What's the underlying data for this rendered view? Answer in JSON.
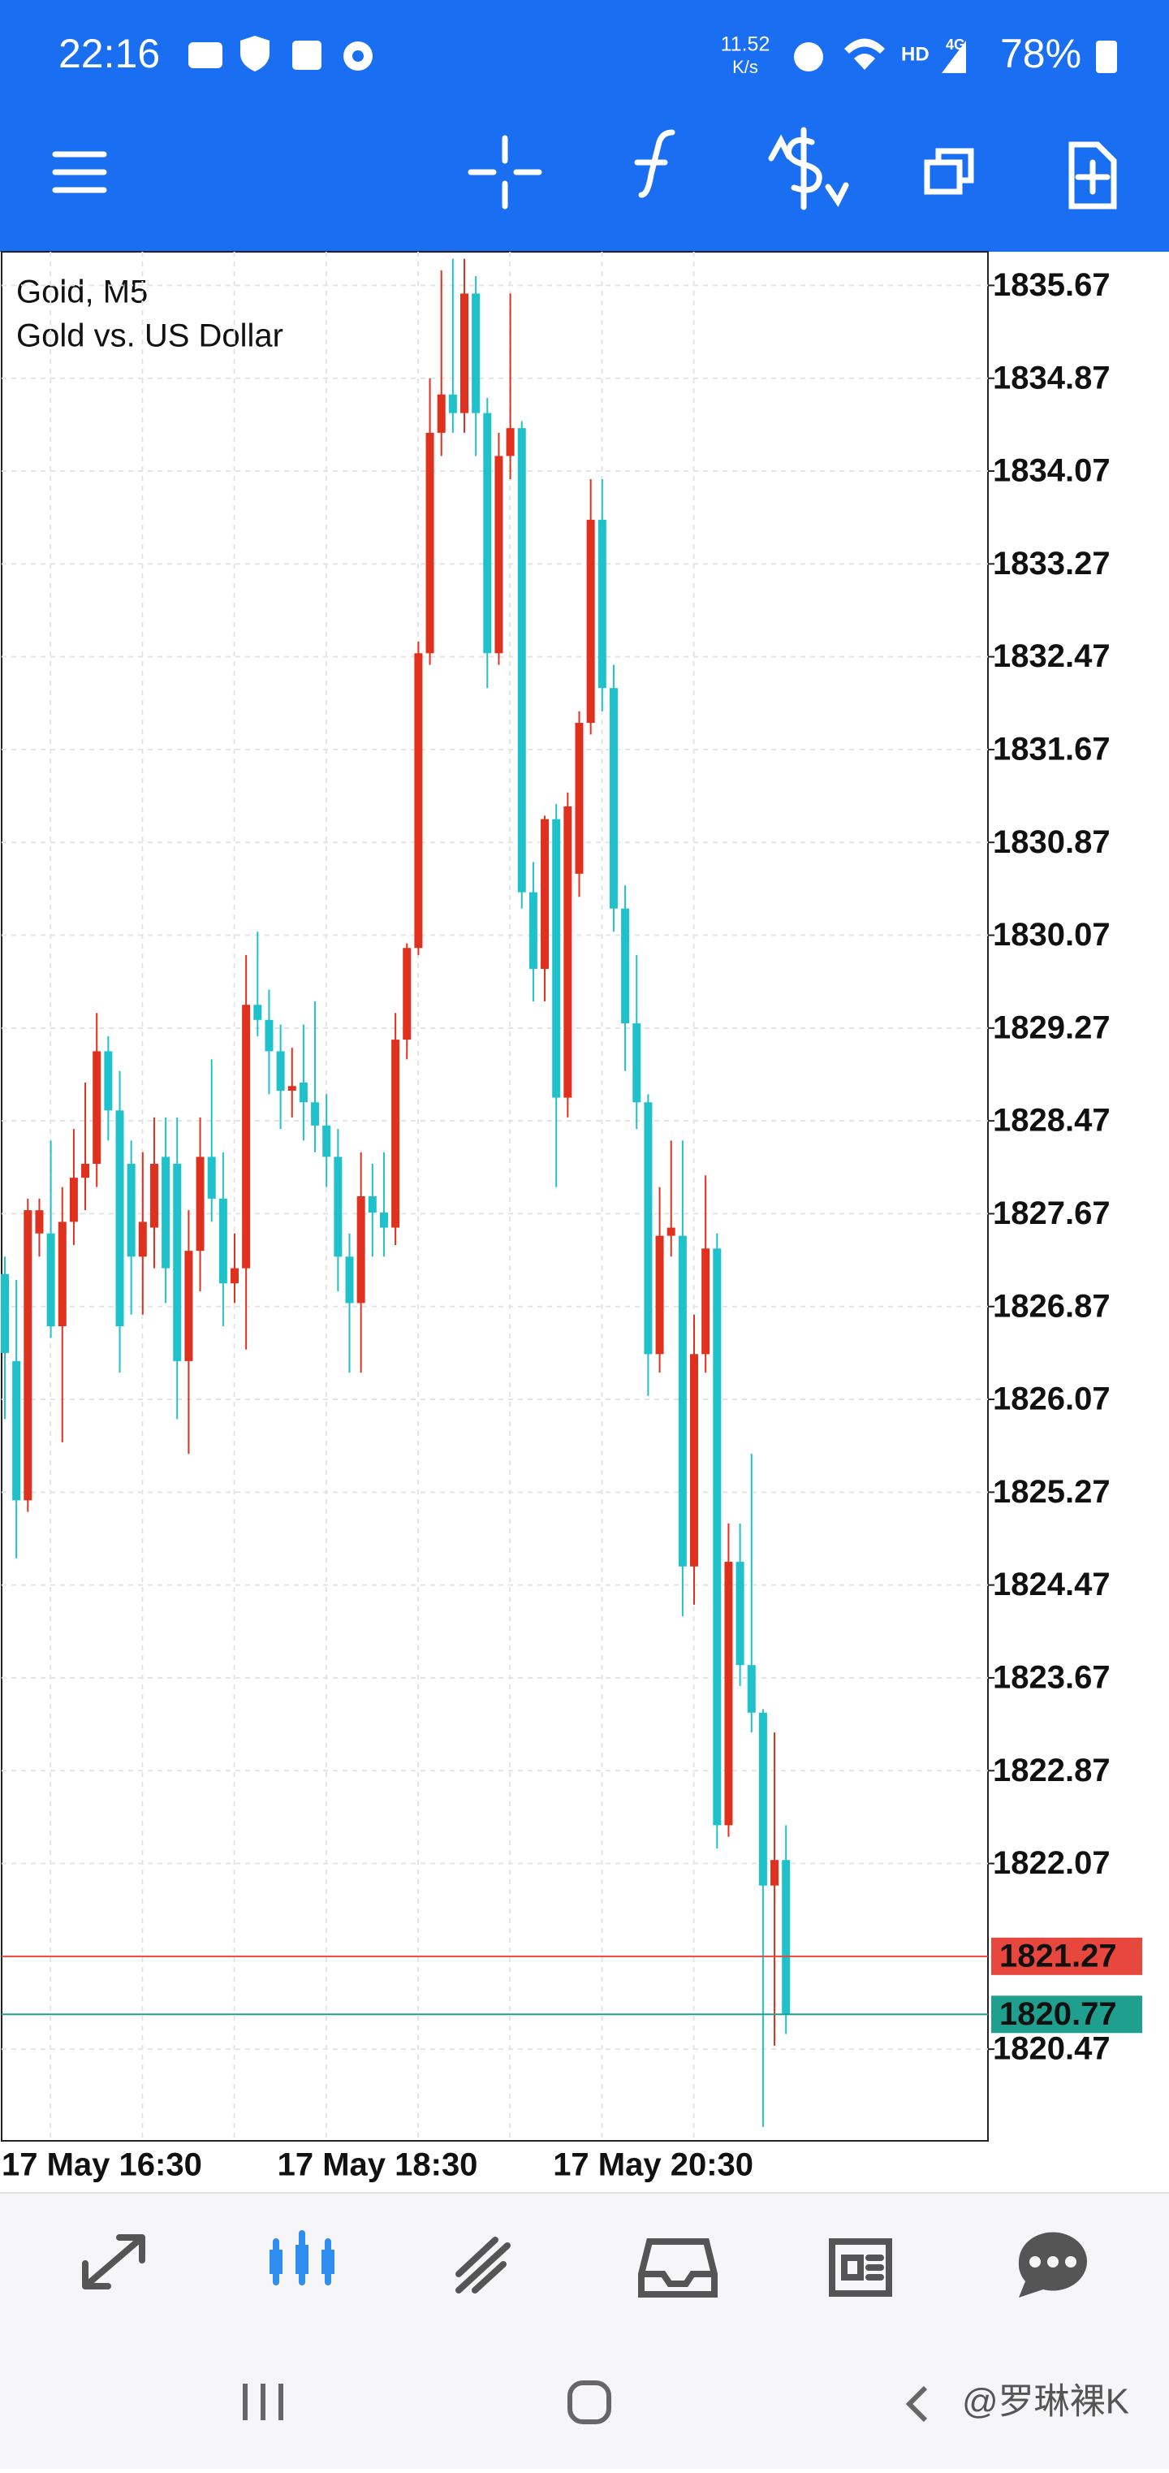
{
  "status_bar": {
    "time": "22:16",
    "speed": "11.52",
    "speed_unit": "K/s",
    "network": "HD",
    "signal": "4G",
    "battery": "78%"
  },
  "chart_data": {
    "type": "candlestick",
    "title": "Gold, M5",
    "subtitle": "Gold vs. US Dollar",
    "categories": [
      "17 May 16:30",
      null,
      null,
      null,
      null,
      null,
      null,
      null,
      null,
      null,
      null,
      null,
      null,
      null,
      null,
      null,
      null,
      null,
      null,
      null,
      null,
      null,
      null,
      null,
      "17 May 18:30",
      null,
      null,
      null,
      null,
      null,
      null,
      null,
      null,
      null,
      null,
      null,
      null,
      null,
      null,
      null,
      null,
      null,
      null,
      null,
      null,
      null,
      null,
      null,
      "17 May 20:30",
      null,
      null,
      null,
      null,
      null,
      null,
      null,
      null,
      null,
      null,
      null,
      null,
      null,
      null,
      null,
      null,
      null,
      null,
      null,
      null
    ],
    "open": [
      1827.15,
      1826.4,
      1825.2,
      1827.5,
      1827.5,
      1826.7,
      1827.6,
      1827.98,
      1828.1,
      1829.07,
      1828.56,
      1828.1,
      1827.3,
      1827.55,
      1828.16,
      1828.1,
      1826.4,
      1827.35,
      1828.16,
      1827.8,
      1827.07,
      1827.2,
      1829.47,
      1829.34,
      1829.07,
      1828.73,
      1828.8,
      1828.63,
      1828.43,
      1828.16,
      1827.3,
      1826.9,
      1827.82,
      1827.68,
      1827.55,
      1829.17,
      1829.96,
      1832.5,
      1834.4,
      1834.73,
      1834.57,
      1835.6,
      1834.57,
      1832.5,
      1834.2,
      1834.44,
      1830.44,
      1829.78,
      1831.07,
      1828.67,
      1830.6,
      1831.9,
      1833.65,
      1832.2,
      1830.3,
      1829.31,
      1828.63,
      1826.46,
      1827.48,
      1827.48,
      1824.63,
      1826.46,
      1827.37,
      1822.4,
      1824.67,
      1823.78,
      1823.37,
      1821.88,
      1822.1
    ],
    "high": [
      1827.3,
      1827.1,
      1827.8,
      1827.8,
      1828.3,
      1827.9,
      1828.4,
      1828.8,
      1829.4,
      1829.2,
      1828.9,
      1828.3,
      1828.2,
      1828.5,
      1828.5,
      1828.5,
      1827.7,
      1828.5,
      1829.0,
      1828.2,
      1827.5,
      1829.9,
      1830.1,
      1829.6,
      1829.3,
      1829.1,
      1829.3,
      1829.5,
      1828.7,
      1828.4,
      1827.5,
      1828.2,
      1828.1,
      1828.2,
      1829.4,
      1830.0,
      1832.6,
      1834.87,
      1835.8,
      1835.9,
      1835.9,
      1835.75,
      1834.7,
      1834.4,
      1835.6,
      1834.5,
      1830.7,
      1831.1,
      1831.2,
      1831.3,
      1832.0,
      1834.0,
      1834.0,
      1832.4,
      1830.5,
      1829.9,
      1828.7,
      1827.9,
      1828.3,
      1828.3,
      1826.8,
      1828.0,
      1827.5,
      1825.0,
      1825.0,
      1825.6,
      1823.4,
      1823.2,
      1822.4
    ],
    "low": [
      1825.9,
      1824.7,
      1825.1,
      1827.3,
      1826.6,
      1825.7,
      1827.4,
      1827.7,
      1827.9,
      1828.3,
      1826.3,
      1826.8,
      1826.8,
      1827.2,
      1826.9,
      1825.9,
      1825.6,
      1827.0,
      1827.6,
      1826.7,
      1826.9,
      1826.5,
      1829.2,
      1828.7,
      1828.4,
      1828.5,
      1828.3,
      1828.2,
      1827.9,
      1827.0,
      1826.3,
      1826.3,
      1827.3,
      1827.3,
      1827.4,
      1829.0,
      1829.9,
      1832.4,
      1834.2,
      1834.4,
      1834.4,
      1834.2,
      1832.2,
      1832.4,
      1834.0,
      1830.3,
      1829.5,
      1829.5,
      1827.9,
      1828.5,
      1830.4,
      1831.8,
      1832.0,
      1830.1,
      1828.9,
      1828.4,
      1826.1,
      1826.3,
      1827.3,
      1824.2,
      1824.3,
      1826.3,
      1822.2,
      1822.3,
      1823.6,
      1823.2,
      1819.8,
      1820.5,
      1820.6
    ],
    "close": [
      1826.47,
      1825.2,
      1827.7,
      1827.7,
      1826.7,
      1827.6,
      1827.98,
      1828.1,
      1829.07,
      1828.56,
      1826.7,
      1827.3,
      1827.6,
      1828.1,
      1827.2,
      1826.4,
      1827.35,
      1828.16,
      1827.8,
      1827.07,
      1827.2,
      1829.47,
      1829.34,
      1829.07,
      1828.73,
      1828.77,
      1828.63,
      1828.43,
      1828.16,
      1827.3,
      1826.9,
      1827.82,
      1827.68,
      1827.55,
      1829.17,
      1829.96,
      1832.5,
      1834.4,
      1834.73,
      1834.57,
      1835.6,
      1834.57,
      1832.5,
      1834.2,
      1834.44,
      1830.44,
      1829.78,
      1831.07,
      1828.67,
      1831.18,
      1831.9,
      1833.65,
      1832.2,
      1830.3,
      1829.31,
      1828.63,
      1826.46,
      1827.48,
      1827.55,
      1824.63,
      1826.46,
      1827.37,
      1822.4,
      1824.67,
      1823.78,
      1823.37,
      1821.88,
      1822.1,
      1820.77
    ],
    "up_color": "#e0301e",
    "down_color": "#1fc2cb",
    "ylim": [
      1819.68,
      1835.96
    ],
    "yticks": [
      1820.47,
      1822.07,
      1822.87,
      1823.67,
      1824.47,
      1825.27,
      1826.07,
      1826.87,
      1827.67,
      1828.47,
      1829.27,
      1830.07,
      1830.87,
      1831.67,
      1832.47,
      1833.27,
      1834.07,
      1834.87,
      1835.67
    ],
    "grid": true,
    "price_lines": [
      {
        "value": 1821.27,
        "color": "#e8473e"
      },
      {
        "value": 1820.77,
        "color": "#1fa08e"
      }
    ]
  },
  "watermark": "@罗琳裸K"
}
